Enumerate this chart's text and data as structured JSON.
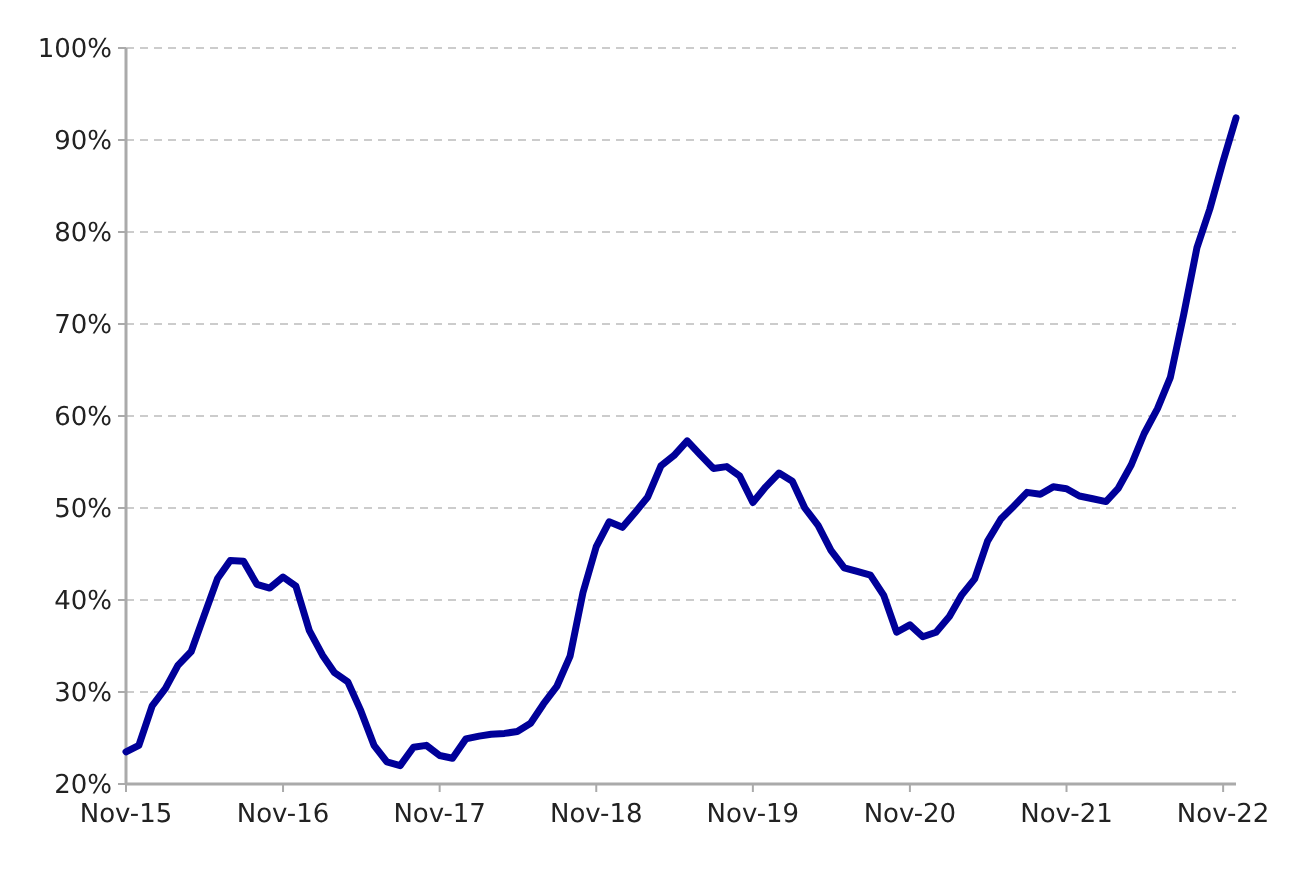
{
  "chart_data": {
    "type": "line",
    "x": [
      "2015-11",
      "2015-12",
      "2016-01",
      "2016-02",
      "2016-03",
      "2016-04",
      "2016-05",
      "2016-06",
      "2016-07",
      "2016-08",
      "2016-09",
      "2016-10",
      "2016-11",
      "2016-12",
      "2017-01",
      "2017-02",
      "2017-03",
      "2017-04",
      "2017-05",
      "2017-06",
      "2017-07",
      "2017-08",
      "2017-09",
      "2017-10",
      "2017-11",
      "2017-12",
      "2018-01",
      "2018-02",
      "2018-03",
      "2018-04",
      "2018-05",
      "2018-06",
      "2018-07",
      "2018-08",
      "2018-09",
      "2018-10",
      "2018-11",
      "2018-12",
      "2019-01",
      "2019-02",
      "2019-03",
      "2019-04",
      "2019-05",
      "2019-06",
      "2019-07",
      "2019-08",
      "2019-09",
      "2019-10",
      "2019-11",
      "2019-12",
      "2020-01",
      "2020-02",
      "2020-03",
      "2020-04",
      "2020-05",
      "2020-06",
      "2020-07",
      "2020-08",
      "2020-09",
      "2020-10",
      "2020-11",
      "2020-12",
      "2021-01",
      "2021-02",
      "2021-03",
      "2021-04",
      "2021-05",
      "2021-06",
      "2021-07",
      "2021-08",
      "2021-09",
      "2021-10",
      "2021-11",
      "2021-12",
      "2022-01",
      "2022-02",
      "2022-03",
      "2022-04",
      "2022-05",
      "2022-06",
      "2022-07",
      "2022-08",
      "2022-09",
      "2022-10",
      "2022-11",
      "2022-12"
    ],
    "series": [
      {
        "color": "#000099",
        "values": [
          23.5,
          24.2,
          28.5,
          30.4,
          32.9,
          34.4,
          38.3,
          42.3,
          44.3,
          44.2,
          41.7,
          41.3,
          42.5,
          41.5,
          36.7,
          34.0,
          32.1,
          31.1,
          28.0,
          24.2,
          22.4,
          22.0,
          24.0,
          24.2,
          23.1,
          22.8,
          24.9,
          25.2,
          25.4,
          25.5,
          25.7,
          26.6,
          28.7,
          30.6,
          33.9,
          40.8,
          45.8,
          48.5,
          47.9,
          49.6,
          51.2,
          54.6,
          55.7,
          57.3,
          55.8,
          54.3,
          54.5,
          53.5,
          50.6,
          52.3,
          53.8,
          52.9,
          50.0,
          48.1,
          45.4,
          43.5,
          43.1,
          42.7,
          40.5,
          36.5,
          37.3,
          36.0,
          36.5,
          38.2,
          40.5,
          42.3,
          46.4,
          48.8,
          50.2,
          51.7,
          51.5,
          52.3,
          52.1,
          51.3,
          51.0,
          50.7,
          52.1,
          54.7,
          58.1,
          60.8,
          64.2,
          71.0,
          78.3,
          82.5,
          87.7,
          92.4
        ]
      }
    ],
    "xlim": [
      "2015-11",
      "2022-12"
    ],
    "xticks": [
      {
        "value": "2015-11",
        "label": "Nov-15"
      },
      {
        "value": "2016-11",
        "label": "Nov-16"
      },
      {
        "value": "2017-11",
        "label": "Nov-17"
      },
      {
        "value": "2018-11",
        "label": "Nov-18"
      },
      {
        "value": "2019-11",
        "label": "Nov-19"
      },
      {
        "value": "2020-11",
        "label": "Nov-20"
      },
      {
        "value": "2021-11",
        "label": "Nov-21"
      },
      {
        "value": "2022-11",
        "label": "Nov-22"
      }
    ],
    "ylim": [
      20,
      100
    ],
    "yticks": [
      {
        "value": 20,
        "label": "20%"
      },
      {
        "value": 30,
        "label": "30%"
      },
      {
        "value": 40,
        "label": "40%"
      },
      {
        "value": 50,
        "label": "50%"
      },
      {
        "value": 60,
        "label": "60%"
      },
      {
        "value": 70,
        "label": "70%"
      },
      {
        "value": 80,
        "label": "80%"
      },
      {
        "value": 90,
        "label": "90%"
      },
      {
        "value": 100,
        "label": "100%"
      }
    ],
    "grid": "y",
    "line_style": "solid",
    "marker": "none"
  }
}
